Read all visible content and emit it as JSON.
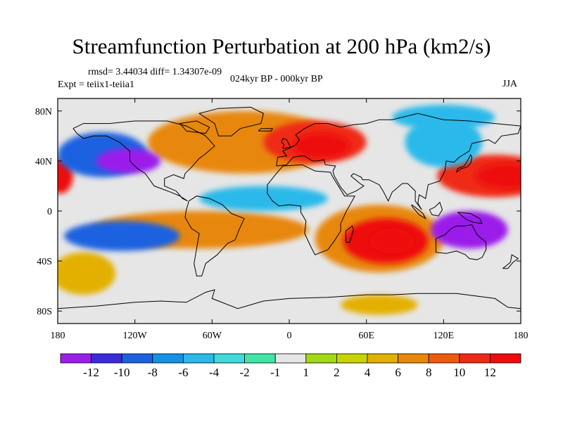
{
  "header": {
    "title": "Streamfunction Perturbation at 200 hPa (km2/s)",
    "rmsd_line": "rmsd= 3.44034 diff= 1.34307e-09",
    "experiment": "Expt = teiix1-teiia1",
    "period": "024kyr BP - 000kyr BP",
    "season": "JJA"
  },
  "map": {
    "projection": "cylindrical-equidistant",
    "lon_range": [
      -180,
      180
    ],
    "lat_range": [
      -90,
      90
    ],
    "x_ticks": [
      {
        "lon": -180,
        "label": "180"
      },
      {
        "lon": -120,
        "label": "120W"
      },
      {
        "lon": -60,
        "label": "60W"
      },
      {
        "lon": 0,
        "label": "0"
      },
      {
        "lon": 60,
        "label": "60E"
      },
      {
        "lon": 120,
        "label": "120E"
      },
      {
        "lon": 180,
        "label": "180"
      }
    ],
    "y_ticks": [
      {
        "lat": 80,
        "label": "80N"
      },
      {
        "lat": 40,
        "label": "40N"
      },
      {
        "lat": 0,
        "label": "0"
      },
      {
        "lat": -40,
        "label": "40S"
      },
      {
        "lat": -80,
        "label": "80S"
      }
    ],
    "background_color": "#e6e6e6",
    "features": [
      {
        "name": "pos-anom-europe",
        "lon": -35,
        "lat": 55,
        "rx": 75,
        "ry": 25,
        "level": 4
      },
      {
        "name": "pos-anom-europe-core",
        "lon": 20,
        "lat": 55,
        "rx": 40,
        "ry": 17,
        "level": 6
      },
      {
        "name": "pos-anom-europe-max",
        "lon": 25,
        "lat": 52,
        "rx": 22,
        "ry": 10,
        "level": 7
      },
      {
        "name": "pos-anom-indian-ocean",
        "lon": 70,
        "lat": -22,
        "rx": 50,
        "ry": 27,
        "level": 4
      },
      {
        "name": "pos-anom-indian-ocean-core",
        "lon": 75,
        "lat": -24,
        "rx": 33,
        "ry": 18,
        "level": 7
      },
      {
        "name": "pos-anom-indian-ocean-max",
        "lon": 80,
        "lat": -24,
        "rx": 17,
        "ry": 10,
        "level": 9
      },
      {
        "name": "pos-anom-west-pacific",
        "lon": 160,
        "lat": 28,
        "rx": 45,
        "ry": 17,
        "level": 6
      },
      {
        "name": "pos-anom-west-pacific-core",
        "lon": 170,
        "lat": 28,
        "rx": 25,
        "ry": 10,
        "level": 8
      },
      {
        "name": "pos-anom-dateline",
        "lon": -178,
        "lat": 28,
        "rx": 10,
        "ry": 14,
        "level": 8
      },
      {
        "name": "pos-anom-south-america",
        "lon": -70,
        "lat": -15,
        "rx": 85,
        "ry": 15,
        "level": 4
      },
      {
        "name": "pos-anom-southern-ocean",
        "lon": -160,
        "lat": -50,
        "rx": 25,
        "ry": 17,
        "level": 3
      },
      {
        "name": "pos-anom-antarctic-indian",
        "lon": 70,
        "lat": -75,
        "rx": 30,
        "ry": 8,
        "level": 3
      },
      {
        "name": "neg-anom-north-pacific",
        "lon": -145,
        "lat": 45,
        "rx": 35,
        "ry": 18,
        "level": -5
      },
      {
        "name": "neg-anom-north-pacific-core",
        "lon": -125,
        "lat": 40,
        "rx": 25,
        "ry": 10,
        "level": -8
      },
      {
        "name": "neg-anom-west-australia",
        "lon": 140,
        "lat": -15,
        "rx": 30,
        "ry": 15,
        "level": -7
      },
      {
        "name": "neg-anom-west-australia-core",
        "lon": 148,
        "lat": -15,
        "rx": 13,
        "ry": 9,
        "level": -9
      },
      {
        "name": "neg-anom-east-pacific",
        "lon": -130,
        "lat": -20,
        "rx": 45,
        "ry": 12,
        "level": -5
      },
      {
        "name": "neg-anom-asia",
        "lon": 120,
        "lat": 55,
        "rx": 30,
        "ry": 20,
        "level": -3
      },
      {
        "name": "neg-anom-atlantic",
        "lon": -20,
        "lat": 10,
        "rx": 50,
        "ry": 10,
        "level": -3
      },
      {
        "name": "neg-anom-siberia",
        "lon": 120,
        "lat": 75,
        "rx": 40,
        "ry": 10,
        "level": -3
      }
    ]
  },
  "colorbar": {
    "labels": [
      "-12",
      "-10",
      "-8",
      "-6",
      "-4",
      "-2",
      "-1",
      "1",
      "2",
      "4",
      "6",
      "8",
      "10",
      "12"
    ],
    "colors": [
      "#9b1fea",
      "#3b2bd8",
      "#1a62e0",
      "#1791e3",
      "#2ab9ea",
      "#3fd9de",
      "#41e6a6",
      "#e6e6e6",
      "#a2d916",
      "#c8d402",
      "#e3b004",
      "#e88708",
      "#ee5a10",
      "#ef2a14",
      "#ee0c0c"
    ]
  }
}
